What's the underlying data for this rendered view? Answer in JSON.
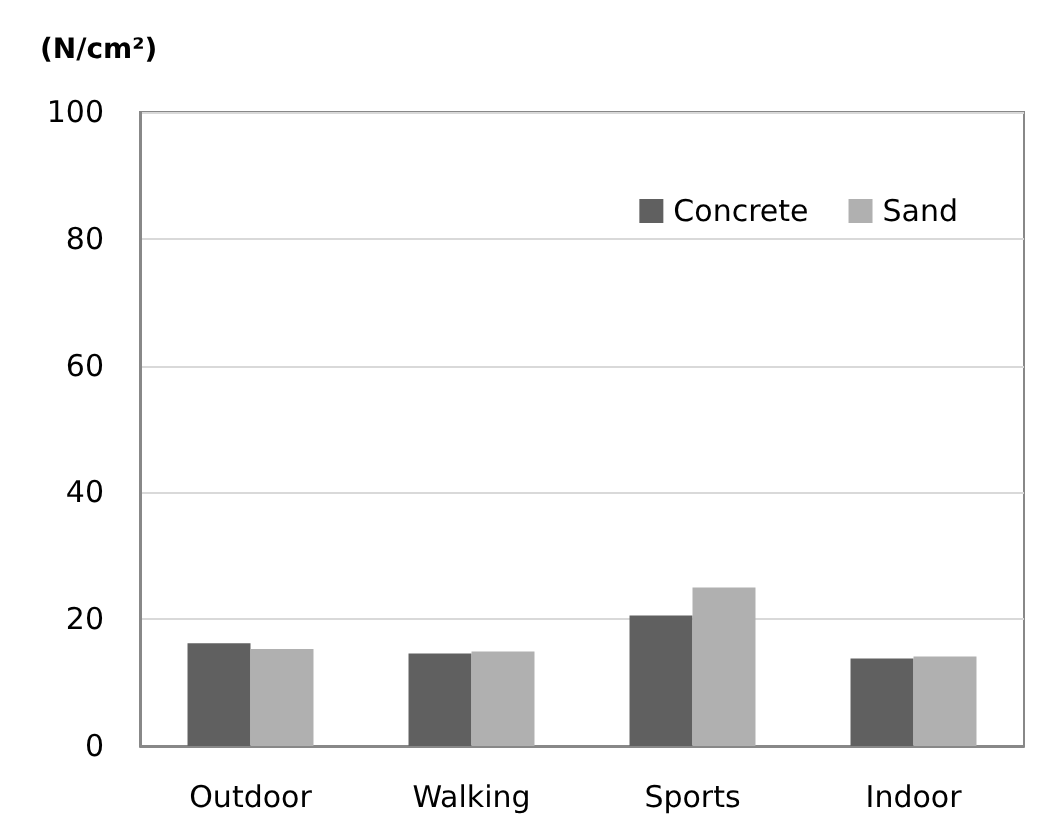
{
  "chart_data": {
    "type": "bar",
    "ylabel": "(N/cm²)",
    "categories": [
      "Outdoor",
      "Walking",
      "Sports",
      "Indoor"
    ],
    "series": [
      {
        "name": "Concrete",
        "color": "#606060",
        "values": [
          16.2,
          14.6,
          20.6,
          13.8
        ]
      },
      {
        "name": "Sand",
        "color": "#b0b0b0",
        "values": [
          15.3,
          14.9,
          25.0,
          14.1
        ]
      }
    ],
    "ylim": [
      0,
      100
    ],
    "yticks": [
      0,
      20,
      40,
      60,
      80,
      100
    ],
    "grid": "y",
    "legend": "top right"
  }
}
